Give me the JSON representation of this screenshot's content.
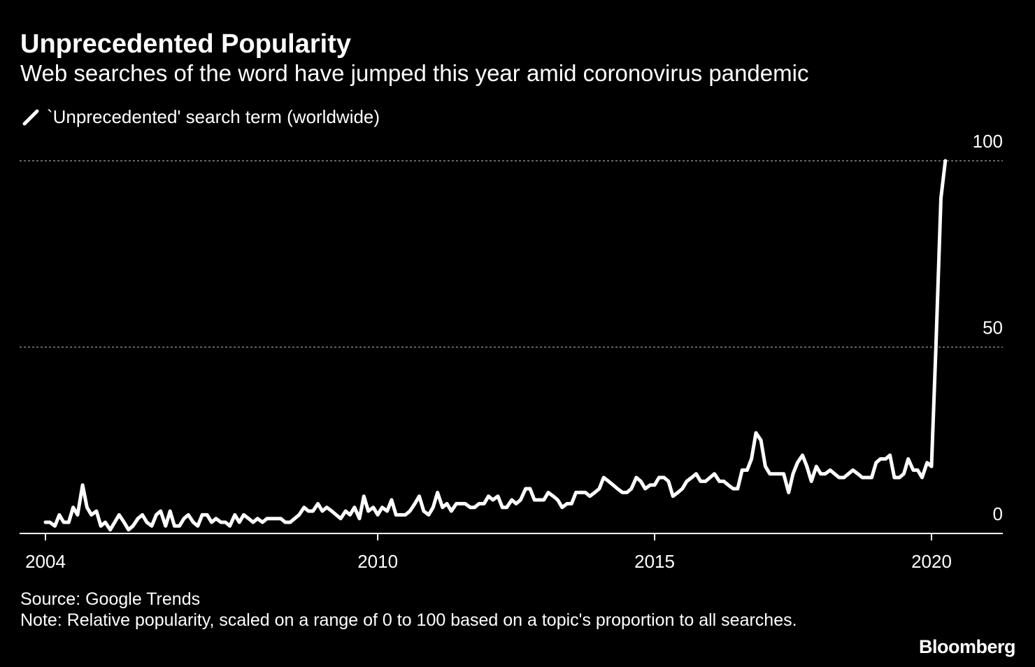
{
  "title": "Unprecedented Popularity",
  "subtitle": "Web searches of the word have jumped this year amid coronovirus pandemic",
  "legend": {
    "label": "`Unprecedented' search term (worldwide)",
    "icon": "white-line-swatch"
  },
  "source": "Source: Google Trends",
  "note": "Note: Relative popularity, scaled on a range of 0 to 100 based on a topic's proportion to all searches.",
  "brand": "Bloomberg",
  "colors": {
    "background": "#000000",
    "line": "#ffffff",
    "grid": "#888888",
    "axis": "#ffffff"
  },
  "chart_data": {
    "type": "line",
    "title": "Unprecedented Popularity",
    "subtitle": "Web searches of the word have jumped this year amid coronovirus pandemic",
    "xlabel": "",
    "ylabel": "",
    "x_ticks": [
      "2004",
      "2010",
      "2015",
      "2020"
    ],
    "x_tick_values": [
      2004,
      2010,
      2015,
      2020
    ],
    "y_ticks": [
      "0",
      "50",
      "100"
    ],
    "y_tick_values": [
      0,
      50,
      100
    ],
    "ylim": [
      0,
      100
    ],
    "xlim": [
      2003.57,
      2021.3
    ],
    "grid": "horizontal dotted at 50 and 100",
    "legend_position": "top-left",
    "series": [
      {
        "name": "`Unprecedented' search term (worldwide)",
        "x": [
          2004.0,
          2004.08,
          2004.17,
          2004.25,
          2004.33,
          2004.42,
          2004.5,
          2004.58,
          2004.67,
          2004.75,
          2004.83,
          2004.92,
          2005.0,
          2005.08,
          2005.17,
          2005.25,
          2005.33,
          2005.42,
          2005.5,
          2005.58,
          2005.67,
          2005.75,
          2005.83,
          2005.92,
          2006.0,
          2006.08,
          2006.17,
          2006.25,
          2006.33,
          2006.42,
          2006.5,
          2006.58,
          2006.67,
          2006.75,
          2006.83,
          2006.92,
          2007.0,
          2007.08,
          2007.17,
          2007.25,
          2007.33,
          2007.42,
          2007.5,
          2007.58,
          2007.67,
          2007.75,
          2007.83,
          2007.92,
          2008.0,
          2008.08,
          2008.17,
          2008.25,
          2008.33,
          2008.42,
          2008.5,
          2008.58,
          2008.67,
          2008.75,
          2008.83,
          2008.92,
          2009.0,
          2009.08,
          2009.17,
          2009.25,
          2009.33,
          2009.42,
          2009.5,
          2009.58,
          2009.67,
          2009.75,
          2009.83,
          2009.92,
          2010.0,
          2010.08,
          2010.17,
          2010.25,
          2010.33,
          2010.42,
          2010.5,
          2010.58,
          2010.67,
          2010.75,
          2010.83,
          2010.92,
          2011.0,
          2011.08,
          2011.17,
          2011.25,
          2011.33,
          2011.42,
          2011.5,
          2011.58,
          2011.67,
          2011.75,
          2011.83,
          2011.92,
          2012.0,
          2012.08,
          2012.17,
          2012.25,
          2012.33,
          2012.42,
          2012.5,
          2012.58,
          2012.67,
          2012.75,
          2012.83,
          2012.92,
          2013.0,
          2013.08,
          2013.17,
          2013.25,
          2013.33,
          2013.42,
          2013.5,
          2013.58,
          2013.67,
          2013.75,
          2013.83,
          2013.92,
          2014.0,
          2014.08,
          2014.17,
          2014.25,
          2014.33,
          2014.42,
          2014.5,
          2014.58,
          2014.67,
          2014.75,
          2014.83,
          2014.92,
          2015.0,
          2015.08,
          2015.17,
          2015.25,
          2015.33,
          2015.42,
          2015.5,
          2015.58,
          2015.67,
          2015.75,
          2015.83,
          2015.92,
          2016.0,
          2016.08,
          2016.17,
          2016.25,
          2016.33,
          2016.42,
          2016.5,
          2016.58,
          2016.67,
          2016.75,
          2016.83,
          2016.92,
          2017.0,
          2017.08,
          2017.17,
          2017.25,
          2017.33,
          2017.42,
          2017.5,
          2017.58,
          2017.67,
          2017.75,
          2017.83,
          2017.92,
          2018.0,
          2018.08,
          2018.17,
          2018.25,
          2018.33,
          2018.42,
          2018.5,
          2018.58,
          2018.67,
          2018.75,
          2018.83,
          2018.92,
          2019.0,
          2019.08,
          2019.17,
          2019.25,
          2019.33,
          2019.42,
          2019.5,
          2019.58,
          2019.67,
          2019.75,
          2019.83,
          2019.92,
          2020.0,
          2020.08,
          2020.17,
          2020.25
        ],
        "values": [
          3,
          3,
          2,
          5,
          3,
          3,
          7,
          5,
          13,
          7,
          5,
          6,
          2,
          3,
          1,
          3,
          5,
          3,
          1,
          2,
          4,
          5,
          3,
          2,
          5,
          6,
          2,
          6,
          2,
          2,
          4,
          5,
          3,
          2,
          5,
          5,
          3,
          4,
          3,
          3,
          2,
          5,
          3,
          5,
          4,
          3,
          4,
          3,
          4,
          4,
          4,
          4,
          3,
          3,
          4,
          5,
          7,
          6,
          6,
          8,
          6,
          7,
          6,
          5,
          4,
          6,
          5,
          7,
          4,
          10,
          6,
          7,
          5,
          7,
          6,
          9,
          5,
          5,
          5,
          6,
          8,
          10,
          6,
          5,
          7,
          11,
          7,
          8,
          6,
          8,
          8,
          8,
          7,
          7,
          8,
          8,
          10,
          9,
          10,
          7,
          7,
          9,
          8,
          9,
          12,
          12,
          9,
          9,
          9,
          11,
          10,
          9,
          7,
          8,
          8,
          11,
          11,
          11,
          10,
          11,
          12,
          15,
          14,
          13,
          12,
          11,
          11,
          12,
          15,
          14,
          12,
          13,
          13,
          15,
          15,
          14,
          10,
          11,
          12,
          14,
          15,
          16,
          14,
          14,
          15,
          16,
          14,
          14,
          13,
          12,
          12,
          17,
          17,
          20,
          27,
          25,
          18,
          16,
          16,
          16,
          16,
          11,
          16,
          19,
          21,
          18,
          14,
          18,
          16,
          16,
          17,
          16,
          15,
          15,
          16,
          17,
          16,
          15,
          15,
          15,
          19,
          20,
          20,
          21,
          15,
          15,
          16,
          20,
          17,
          17,
          15,
          19,
          18,
          50,
          90,
          100
        ]
      }
    ]
  }
}
